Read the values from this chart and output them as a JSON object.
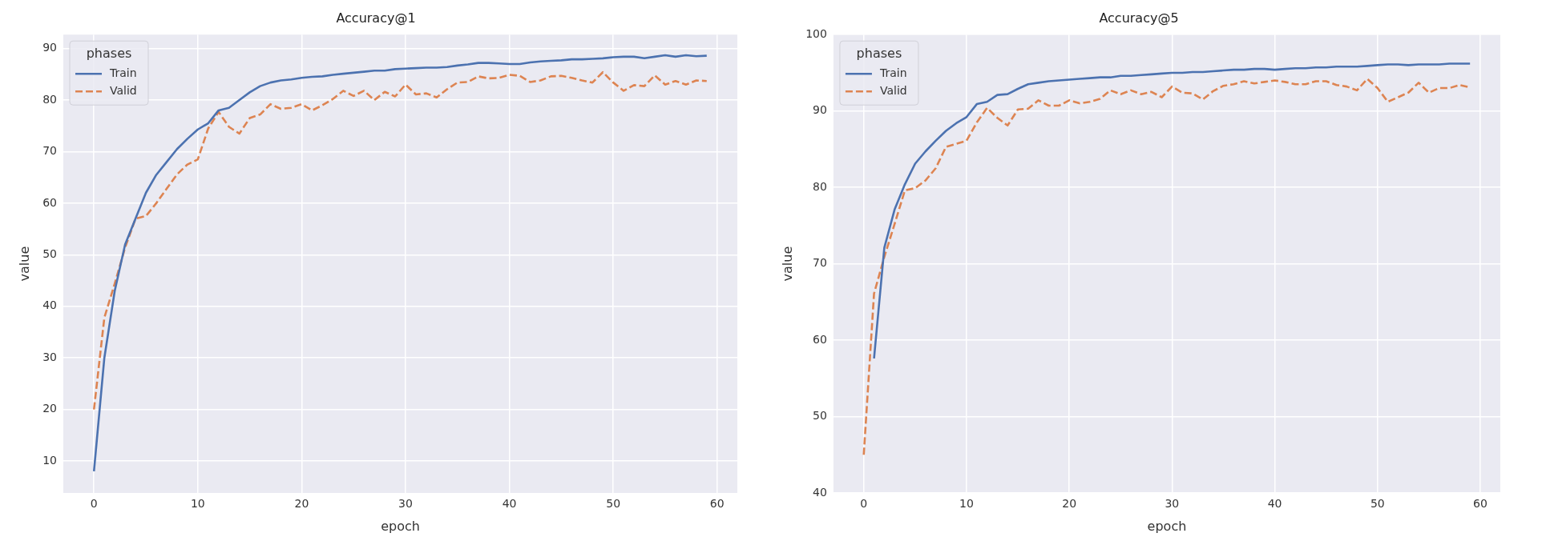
{
  "chart_data": [
    {
      "type": "line",
      "title": "Accuracy@1",
      "xlabel": "epoch",
      "ylabel": "value",
      "legend": "top left",
      "legend_title": "phases",
      "grid": true,
      "x": [
        0,
        1,
        2,
        3,
        4,
        5,
        6,
        7,
        8,
        9,
        10,
        11,
        12,
        13,
        14,
        15,
        16,
        17,
        18,
        19,
        20,
        21,
        22,
        23,
        24,
        25,
        26,
        27,
        28,
        29,
        30,
        31,
        32,
        33,
        34,
        35,
        36,
        37,
        38,
        39,
        40,
        41,
        42,
        43,
        44,
        45,
        46,
        47,
        48,
        49,
        50,
        51,
        52,
        53,
        54,
        55,
        56,
        57,
        58,
        59
      ],
      "xlim": [
        -2.95,
        61.95
      ],
      "xticks": [
        0,
        10,
        20,
        30,
        40,
        50,
        60
      ],
      "ylim": [
        3.8,
        92.7
      ],
      "yticks": [
        10,
        20,
        30,
        40,
        50,
        60,
        70,
        80,
        90
      ],
      "series": [
        {
          "name": "Train",
          "color": "#4c72b0",
          "line_style": "solid",
          "values": [
            8,
            30,
            43,
            52,
            57,
            62,
            65.5,
            68,
            70.5,
            72.5,
            74.3,
            75.5,
            78,
            78.5,
            80,
            81.5,
            82.7,
            83.4,
            83.8,
            84,
            84.3,
            84.5,
            84.6,
            84.9,
            85.1,
            85.3,
            85.5,
            85.7,
            85.7,
            86,
            86.1,
            86.2,
            86.3,
            86.3,
            86.4,
            86.7,
            86.9,
            87.2,
            87.2,
            87.1,
            87,
            87,
            87.3,
            87.5,
            87.6,
            87.7,
            87.9,
            87.9,
            88,
            88.1,
            88.3,
            88.4,
            88.4,
            88.1,
            88.4,
            88.7,
            88.4,
            88.7,
            88.5,
            88.6
          ]
        },
        {
          "name": "Valid",
          "color": "#dd8452",
          "line_style": "dashed",
          "values": [
            20,
            37.8,
            44.4,
            51.4,
            57,
            57.5,
            60,
            62.8,
            65.6,
            67.5,
            68.5,
            74.5,
            77.7,
            74.8,
            73.5,
            76.5,
            77.2,
            79.2,
            78.3,
            78.5,
            79.2,
            78,
            79,
            80.2,
            81.8,
            80.8,
            81.8,
            80,
            81.6,
            80.7,
            83,
            81.1,
            81.3,
            80.5,
            82.1,
            83.4,
            83.5,
            84.6,
            84.2,
            84.3,
            84.9,
            84.7,
            83.5,
            83.8,
            84.6,
            84.7,
            84.3,
            83.8,
            83.4,
            85.4,
            83.4,
            81.8,
            82.9,
            82.7,
            84.8,
            83,
            83.7,
            83,
            83.8,
            83.7
          ]
        }
      ]
    },
    {
      "type": "line",
      "title": "Accuracy@5",
      "xlabel": "epoch",
      "ylabel": "value",
      "legend": "top left",
      "legend_title": "phases",
      "grid": true,
      "x": [
        0,
        1,
        2,
        3,
        4,
        5,
        6,
        7,
        8,
        9,
        10,
        11,
        12,
        13,
        14,
        15,
        16,
        17,
        18,
        19,
        20,
        21,
        22,
        23,
        24,
        25,
        26,
        27,
        28,
        29,
        30,
        31,
        32,
        33,
        34,
        35,
        36,
        37,
        38,
        39,
        40,
        41,
        42,
        43,
        44,
        45,
        46,
        47,
        48,
        49,
        50,
        51,
        52,
        53,
        54,
        55,
        56,
        57,
        58,
        59
      ],
      "xlim": [
        -2.95,
        61.95
      ],
      "xticks": [
        0,
        10,
        20,
        30,
        40,
        50,
        60
      ],
      "ylim": [
        40,
        100
      ],
      "yticks": [
        40,
        50,
        60,
        70,
        80,
        90,
        100
      ],
      "series": [
        {
          "name": "Train",
          "color": "#4c72b0",
          "line_style": "solid",
          "values": [
            null,
            57.6,
            72.1,
            77.1,
            80.4,
            83.1,
            84.7,
            86.1,
            87.4,
            88.4,
            89.2,
            90.9,
            91.2,
            92.1,
            92.2,
            92.9,
            93.5,
            93.7,
            93.9,
            94,
            94.1,
            94.2,
            94.3,
            94.4,
            94.4,
            94.6,
            94.6,
            94.7,
            94.8,
            94.9,
            95,
            95,
            95.1,
            95.1,
            95.2,
            95.3,
            95.4,
            95.4,
            95.5,
            95.5,
            95.4,
            95.5,
            95.6,
            95.6,
            95.7,
            95.7,
            95.8,
            95.8,
            95.8,
            95.9,
            96,
            96.1,
            96.1,
            96,
            96.1,
            96.1,
            96.1,
            96.2,
            96.2,
            96.2
          ]
        },
        {
          "name": "Valid",
          "color": "#dd8452",
          "line_style": "dashed",
          "values": [
            45,
            66.1,
            70.9,
            75.2,
            79.6,
            79.9,
            80.9,
            82.5,
            85.3,
            85.7,
            86.1,
            88.5,
            90.4,
            89.1,
            88.1,
            90.2,
            90.3,
            91.4,
            90.7,
            90.7,
            91.4,
            91,
            91.2,
            91.6,
            92.7,
            92.2,
            92.7,
            92.2,
            92.5,
            91.8,
            93.2,
            92.4,
            92.3,
            91.5,
            92.6,
            93.3,
            93.5,
            93.9,
            93.6,
            93.8,
            94,
            93.8,
            93.5,
            93.5,
            93.9,
            93.9,
            93.4,
            93.2,
            92.7,
            94.2,
            93,
            91.2,
            91.8,
            92.4,
            93.7,
            92.4,
            93,
            93,
            93.4,
            93.1
          ]
        }
      ]
    }
  ]
}
